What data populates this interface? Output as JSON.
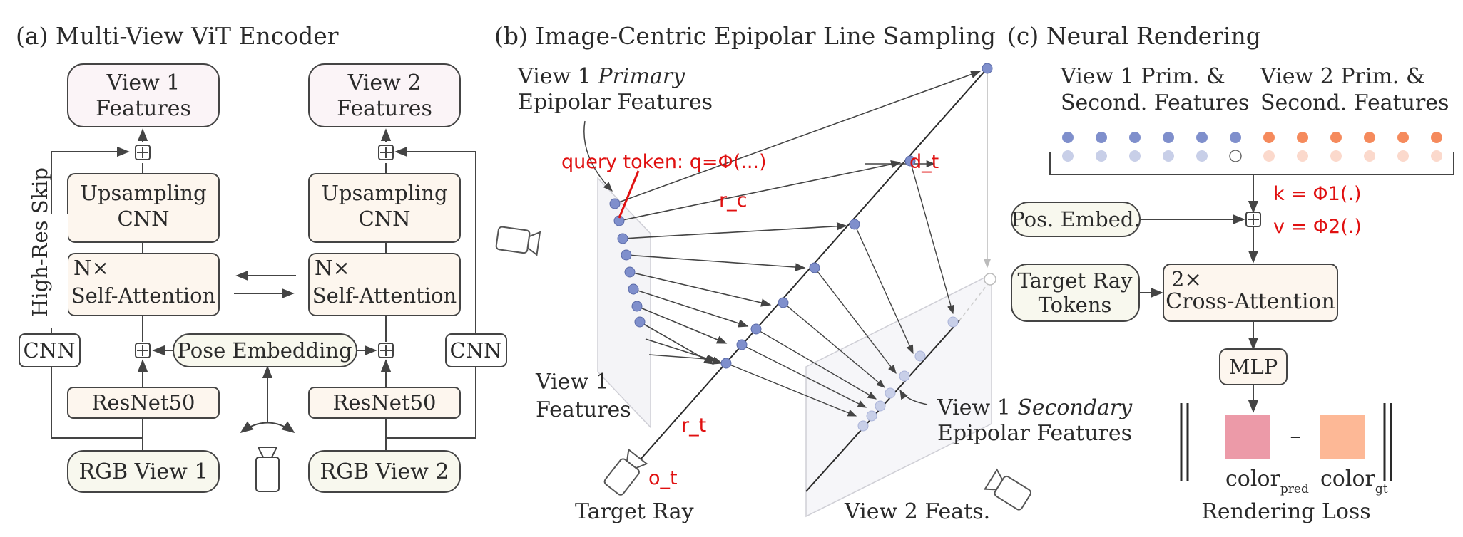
{
  "sections": {
    "a": "(a) Multi-View ViT Encoder",
    "b": "(b) Image-Centric Epipolar Line Sampling",
    "c": "(c) Neural Rendering"
  },
  "encoder": {
    "view1_features": [
      "View 1",
      "Features"
    ],
    "view2_features": [
      "View 2",
      "Features"
    ],
    "upsampling": [
      "Upsampling",
      "CNN"
    ],
    "self_attention": [
      "N×",
      "Self-Attention"
    ],
    "resnet": "ResNet50",
    "rgb_view1": "RGB View 1",
    "rgb_view2": "RGB View 2",
    "cnn": "CNN",
    "pose_embedding": "Pose Embedding",
    "skip": "High-Res Skip"
  },
  "epipolar": {
    "primary_label": [
      "View 1 ",
      "Primary",
      "Epipolar Features"
    ],
    "query_token": "query token: q=Φ(...)",
    "r_c": "r_c",
    "d_t": "d_t",
    "r_t": "r_t",
    "o_t": "o_t",
    "view1_features": [
      "View 1",
      "Features"
    ],
    "secondary_label": [
      "View 1 ",
      "Secondary",
      "Epipolar Features"
    ],
    "target_ray": "Target Ray",
    "view2_feats": "View 2 Feats."
  },
  "rendering": {
    "view1_prim": [
      "View 1 Prim. &",
      "Second. Features"
    ],
    "view2_prim": [
      "View 2 Prim. &",
      "Second. Features"
    ],
    "k_eq": "k = Φ1(.)",
    "v_eq": "v = Φ2(.)",
    "pos_embed": "Pos. Embed.",
    "target_ray_tokens": [
      "Target Ray",
      "Tokens"
    ],
    "cross_attention": [
      "2×",
      "Cross-Attention"
    ],
    "mlp": "MLP",
    "color_pred": "color",
    "color_pred_sub": "pred",
    "color_gt": "color",
    "color_gt_sub": "gt",
    "minus": "–",
    "loss": "Rendering Loss"
  },
  "colors": {
    "blue_dot": "#7f8fcc",
    "light_blue_dot": "#c8cfe8",
    "orange_dot": "#f58a5c",
    "light_orange_dot": "#fbd9cc",
    "pred_swatch": "#ec9aa8",
    "gt_swatch": "#fdb896",
    "annotation_red": "#e01010"
  }
}
